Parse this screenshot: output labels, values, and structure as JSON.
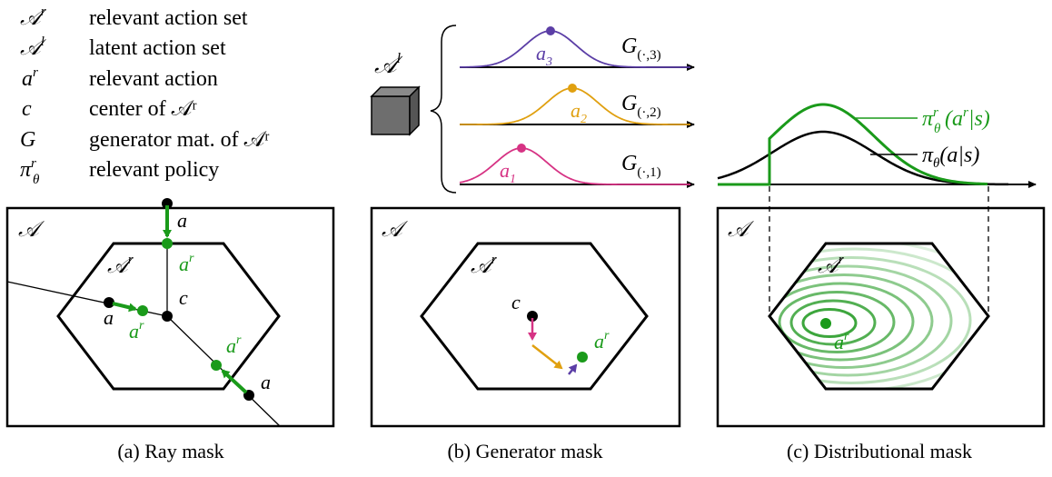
{
  "legend": {
    "rows": [
      {
        "symbol": "𝒜",
        "sup": "r",
        "sub": "",
        "desc": "relevant action set"
      },
      {
        "symbol": "𝒜",
        "sup": "l",
        "sub": "",
        "desc": "latent action set"
      },
      {
        "symbol": "a",
        "sup": "r",
        "sub": "",
        "desc": "relevant action"
      },
      {
        "symbol": "c",
        "sup": "",
        "sub": "",
        "desc": "center of 𝒜ʳ"
      },
      {
        "symbol": "G",
        "sup": "",
        "sub": "",
        "desc": "generator mat. of 𝒜ʳ"
      },
      {
        "symbol": "π",
        "sup": "r",
        "sub": "θ",
        "desc": "relevant policy"
      }
    ]
  },
  "panel_a": {
    "caption": "(a) Ray mask",
    "space_label": "𝒜",
    "set_label": "𝒜",
    "set_label_sup": "r",
    "center_label": "c",
    "action_label": "a",
    "relevant_label": "a",
    "relevant_sup": "r",
    "colors": {
      "relevant": "#1a9a1a",
      "action": "#000000"
    }
  },
  "panel_b": {
    "caption": "(b) Generator mask",
    "latent_label": "𝒜",
    "latent_sup": "l",
    "space_label": "𝒜",
    "set_label": "𝒜",
    "set_label_sup": "r",
    "center_label": "c",
    "relevant_label": "a",
    "relevant_sup": "r",
    "generators": [
      {
        "label": "G",
        "sub": "(·,3)",
        "point": "a",
        "point_sub": "3",
        "color": "#5b3ea6"
      },
      {
        "label": "G",
        "sub": "(·,2)",
        "point": "a",
        "point_sub": "2",
        "color": "#e0a010"
      },
      {
        "label": "G",
        "sub": "(·,1)",
        "point": "a",
        "point_sub": "1",
        "color": "#d63384"
      }
    ]
  },
  "panel_c": {
    "caption": "(c) Distributional mask",
    "space_label": "𝒜",
    "set_label": "𝒜",
    "set_label_sup": "r",
    "relevant_label": "a",
    "relevant_sup": "r",
    "policy_relevant_label": "π",
    "policy_relevant_sup": "r",
    "policy_relevant_sub": "θ",
    "policy_relevant_arg": "(a",
    "policy_relevant_arg_sup": "r",
    "policy_relevant_arg_end": "|s)",
    "policy_label": "π",
    "policy_sub": "θ",
    "policy_arg": "(a|s)",
    "colors": {
      "relevant": "#1a9a1a",
      "policy": "#000000"
    }
  }
}
